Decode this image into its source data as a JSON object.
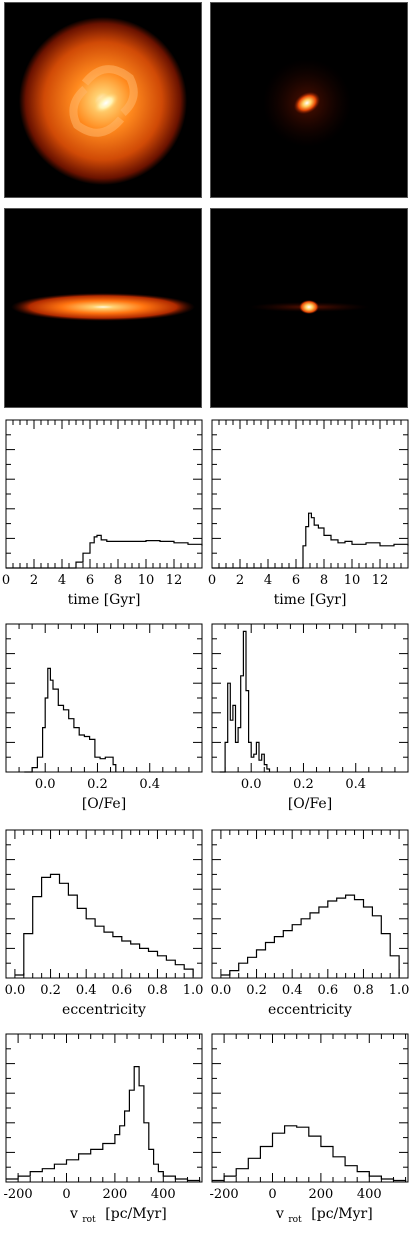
{
  "images": [
    {
      "name": "face-on-left",
      "view": "face-on",
      "column": "left"
    },
    {
      "name": "face-on-right",
      "view": "face-on",
      "column": "right"
    },
    {
      "name": "edge-on-left",
      "view": "edge-on",
      "column": "left"
    },
    {
      "name": "edge-on-right",
      "view": "edge-on",
      "column": "right"
    }
  ],
  "colors": {
    "line": "#000000",
    "image_bg": "#000000",
    "glow_core": "#fffbe0",
    "glow_mid": "#ff8a1e",
    "glow_outer": "#8a1a00"
  },
  "chart_data": [
    {
      "type": "line",
      "step": true,
      "panel": "time-left",
      "xlabel": "time [Gyr]",
      "ticks": [
        "0",
        "2",
        "4",
        "6",
        "8",
        "10",
        "12"
      ],
      "tick_values": [
        0,
        2,
        4,
        6,
        8,
        10,
        12
      ],
      "xlim": [
        0,
        14
      ],
      "ylim": [
        0,
        1
      ],
      "x": [
        0,
        4.5,
        5.0,
        5.5,
        6.0,
        6.3,
        6.5,
        6.8,
        7.2,
        8,
        9,
        10,
        11,
        12,
        13,
        14
      ],
      "y": [
        0,
        0,
        0.04,
        0.1,
        0.17,
        0.21,
        0.22,
        0.19,
        0.18,
        0.18,
        0.18,
        0.185,
        0.18,
        0.17,
        0.16,
        0.15
      ]
    },
    {
      "type": "line",
      "step": true,
      "panel": "time-right",
      "xlabel": "time [Gyr]",
      "ticks": [
        "0",
        "2",
        "4",
        "6",
        "8",
        "10",
        "12"
      ],
      "tick_values": [
        0,
        2,
        4,
        6,
        8,
        10,
        12
      ],
      "xlim": [
        0,
        14
      ],
      "ylim": [
        0,
        1
      ],
      "x": [
        0,
        6.2,
        6.5,
        6.7,
        6.9,
        7.1,
        7.3,
        7.6,
        8,
        8.5,
        9,
        9.5,
        10,
        11,
        12,
        13,
        14
      ],
      "y": [
        0,
        0,
        0.15,
        0.28,
        0.37,
        0.34,
        0.29,
        0.27,
        0.22,
        0.19,
        0.17,
        0.18,
        0.16,
        0.17,
        0.15,
        0.16,
        0.15
      ]
    },
    {
      "type": "line",
      "step": true,
      "panel": "ofe-left",
      "xlabel": "[O/Fe]",
      "ticks": [
        "0.0",
        "0.2",
        "0.4"
      ],
      "tick_values": [
        0,
        0.2,
        0.4
      ],
      "xlim": [
        -0.15,
        0.6
      ],
      "ylim": [
        0,
        1
      ],
      "x": [
        -0.08,
        -0.05,
        -0.03,
        -0.01,
        0.0,
        0.01,
        0.02,
        0.03,
        0.05,
        0.07,
        0.09,
        0.11,
        0.13,
        0.15,
        0.17,
        0.19,
        0.21,
        0.23,
        0.25,
        0.26,
        0.27
      ],
      "y": [
        0,
        0.03,
        0.1,
        0.3,
        0.5,
        0.7,
        0.62,
        0.56,
        0.45,
        0.42,
        0.36,
        0.3,
        0.25,
        0.24,
        0.22,
        0.1,
        0.09,
        0.1,
        0.1,
        0.05,
        0
      ]
    },
    {
      "type": "line",
      "step": true,
      "panel": "ofe-right",
      "xlabel": "[O/Fe]",
      "ticks": [
        "0.0",
        "0.2",
        "0.4"
      ],
      "tick_values": [
        0,
        0.2,
        0.4
      ],
      "xlim": [
        -0.15,
        0.6
      ],
      "ylim": [
        0,
        1
      ],
      "x": [
        -0.12,
        -0.1,
        -0.09,
        -0.08,
        -0.07,
        -0.06,
        -0.05,
        -0.04,
        -0.03,
        -0.02,
        -0.01,
        0.0,
        0.01,
        0.02,
        0.03,
        0.04,
        0.05,
        0.06,
        0.07
      ],
      "y": [
        0,
        0.2,
        0.6,
        0.35,
        0.45,
        0.2,
        0.3,
        0.65,
        0.95,
        0.55,
        0.2,
        0.1,
        0.12,
        0.2,
        0.08,
        0.12,
        0.05,
        0.02,
        0
      ]
    },
    {
      "type": "line",
      "step": true,
      "panel": "ecc-left",
      "xlabel": "eccentricity",
      "ticks": [
        "0.0",
        "0.2",
        "0.4",
        "0.6",
        "0.8",
        "1.0"
      ],
      "tick_values": [
        0,
        0.2,
        0.4,
        0.6,
        0.8,
        1.0
      ],
      "xlim": [
        -0.05,
        1.05
      ],
      "ylim": [
        0,
        1
      ],
      "x": [
        0,
        0.05,
        0.1,
        0.15,
        0.2,
        0.25,
        0.3,
        0.35,
        0.4,
        0.45,
        0.5,
        0.55,
        0.6,
        0.65,
        0.7,
        0.75,
        0.8,
        0.85,
        0.9,
        0.95,
        1.0
      ],
      "y": [
        0.02,
        0.3,
        0.55,
        0.68,
        0.7,
        0.64,
        0.56,
        0.47,
        0.4,
        0.35,
        0.31,
        0.28,
        0.25,
        0.23,
        0.2,
        0.18,
        0.15,
        0.12,
        0.09,
        0.06,
        0.01
      ]
    },
    {
      "type": "line",
      "step": true,
      "panel": "ecc-right",
      "xlabel": "eccentricity",
      "ticks": [
        "0.0",
        "0.2",
        "0.4",
        "0.6",
        "0.8",
        "1.0"
      ],
      "tick_values": [
        0,
        0.2,
        0.4,
        0.6,
        0.8,
        1.0
      ],
      "xlim": [
        -0.05,
        1.05
      ],
      "ylim": [
        0,
        1
      ],
      "x": [
        0,
        0.05,
        0.1,
        0.15,
        0.2,
        0.25,
        0.3,
        0.35,
        0.4,
        0.45,
        0.5,
        0.55,
        0.6,
        0.65,
        0.7,
        0.75,
        0.8,
        0.85,
        0.9,
        0.95,
        1.0
      ],
      "y": [
        0.02,
        0.05,
        0.1,
        0.14,
        0.19,
        0.24,
        0.28,
        0.32,
        0.36,
        0.4,
        0.44,
        0.48,
        0.52,
        0.54,
        0.56,
        0.53,
        0.48,
        0.42,
        0.3,
        0.15,
        0.01
      ]
    },
    {
      "type": "line",
      "step": true,
      "panel": "vrot-left",
      "xlabel": "v",
      "xlabel_sub": "rot",
      "xlabel_unit": "[pc/Myr]",
      "ticks": [
        "-200",
        "0",
        "200",
        "400"
      ],
      "tick_values": [
        -200,
        0,
        200,
        400
      ],
      "xlim": [
        -250,
        560
      ],
      "ylim": [
        0,
        1
      ],
      "x": [
        -250,
        -200,
        -150,
        -100,
        -50,
        0,
        50,
        100,
        150,
        200,
        220,
        240,
        260,
        280,
        300,
        320,
        340,
        360,
        380,
        400,
        450,
        500,
        550
      ],
      "y": [
        0.02,
        0.04,
        0.07,
        0.09,
        0.12,
        0.15,
        0.19,
        0.22,
        0.26,
        0.32,
        0.38,
        0.48,
        0.62,
        0.78,
        0.65,
        0.4,
        0.22,
        0.12,
        0.07,
        0.04,
        0.02,
        0.01,
        0.005
      ]
    },
    {
      "type": "line",
      "step": true,
      "panel": "vrot-right",
      "xlabel": "v",
      "xlabel_sub": "rot",
      "xlabel_unit": "[pc/Myr]",
      "ticks": [
        "-200",
        "0",
        "200",
        "400"
      ],
      "tick_values": [
        -200,
        0,
        200,
        400
      ],
      "xlim": [
        -250,
        560
      ],
      "ylim": [
        0,
        1
      ],
      "x": [
        -250,
        -200,
        -150,
        -100,
        -50,
        0,
        50,
        100,
        150,
        200,
        250,
        300,
        350,
        400,
        450,
        500,
        550
      ],
      "y": [
        0.01,
        0.04,
        0.09,
        0.16,
        0.24,
        0.33,
        0.38,
        0.37,
        0.31,
        0.24,
        0.17,
        0.11,
        0.07,
        0.04,
        0.02,
        0.01,
        0.005
      ]
    }
  ]
}
